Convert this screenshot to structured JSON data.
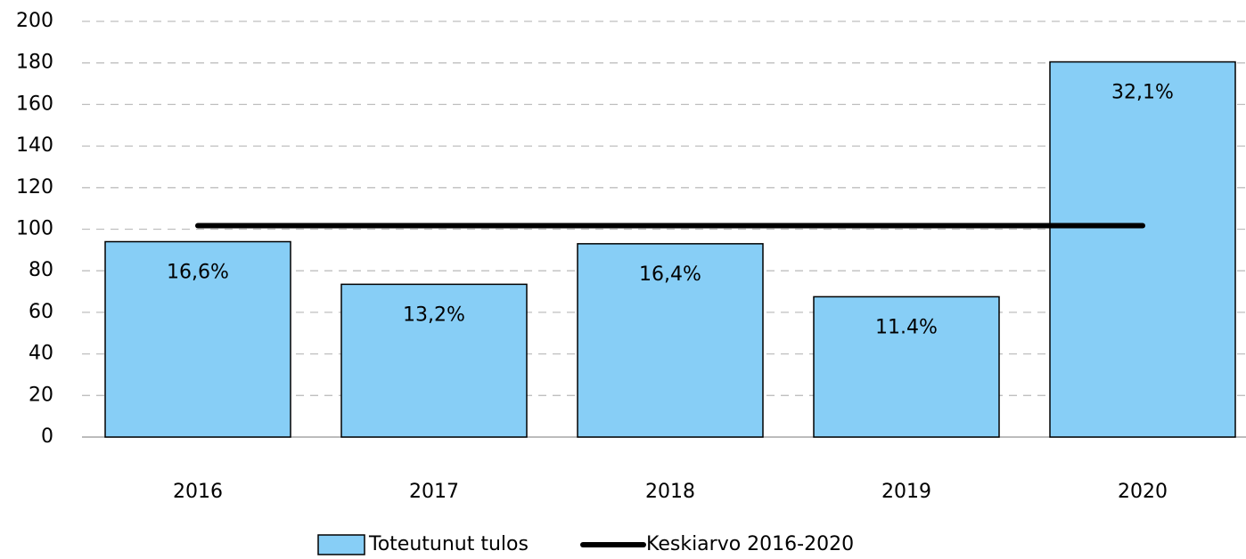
{
  "chart_data": {
    "type": "bar",
    "categories": [
      "2016",
      "2017",
      "2018",
      "2019",
      "2020"
    ],
    "series": [
      {
        "name": "Toteutunut tulos",
        "type": "bar",
        "color": "#87cef6",
        "values": [
          94,
          73.5,
          93,
          67.5,
          180.5
        ],
        "bar_labels": [
          "16,6%",
          "13,2%",
          "16,4%",
          "11.4%",
          "32,1%"
        ]
      },
      {
        "name": "Keskiarvo 2016-2020",
        "type": "line",
        "color": "#000000",
        "values": [
          101.7,
          101.7,
          101.7,
          101.7,
          101.7
        ]
      }
    ],
    "ylim": [
      0,
      200
    ],
    "yticks": [
      0,
      20,
      40,
      60,
      80,
      100,
      120,
      140,
      160,
      180,
      200
    ],
    "grid": true
  }
}
